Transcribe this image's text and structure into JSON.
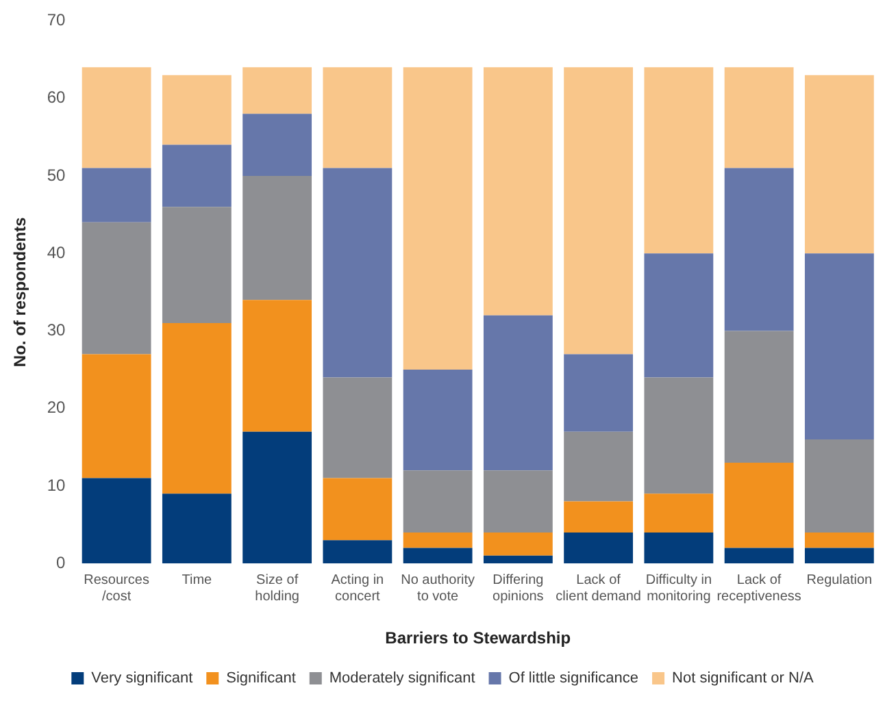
{
  "chart_data": {
    "type": "bar",
    "stacked": true,
    "xlabel": "Barriers to Stewardship",
    "ylabel": "No. of respondents",
    "categories": [
      "Resources\n/cost",
      "Time",
      "Size of\nholding",
      "Acting in\nconcert",
      "No authority\nto vote",
      "Differing\nopinions",
      "Lack of\nclient demand",
      "Difficulty in\nmonitoring",
      "Lack of\nreceptiveness",
      "Regulation"
    ],
    "series": [
      {
        "name": "Very significant",
        "color": "#033d7b",
        "values": [
          11,
          9,
          17,
          3,
          2,
          1,
          4,
          4,
          2,
          2
        ]
      },
      {
        "name": "Significant",
        "color": "#f2911e",
        "values": [
          16,
          22,
          17,
          8,
          2,
          3,
          4,
          5,
          11,
          2
        ]
      },
      {
        "name": "Moderately significant",
        "color": "#8e8f93",
        "values": [
          17,
          15,
          16,
          13,
          8,
          8,
          9,
          15,
          17,
          12
        ]
      },
      {
        "name": "Of little significance",
        "color": "#6677aa",
        "values": [
          7,
          8,
          8,
          27,
          13,
          20,
          10,
          16,
          21,
          24
        ]
      },
      {
        "name": "Not significant or N/A",
        "color": "#f9c68a",
        "values": [
          13,
          9,
          6,
          13,
          39,
          32,
          37,
          24,
          13,
          23
        ]
      }
    ],
    "ylim": [
      0,
      70
    ],
    "yticks": [
      0,
      10,
      20,
      30,
      40,
      50,
      60,
      70
    ],
    "grid": false,
    "legend": "bottom"
  }
}
